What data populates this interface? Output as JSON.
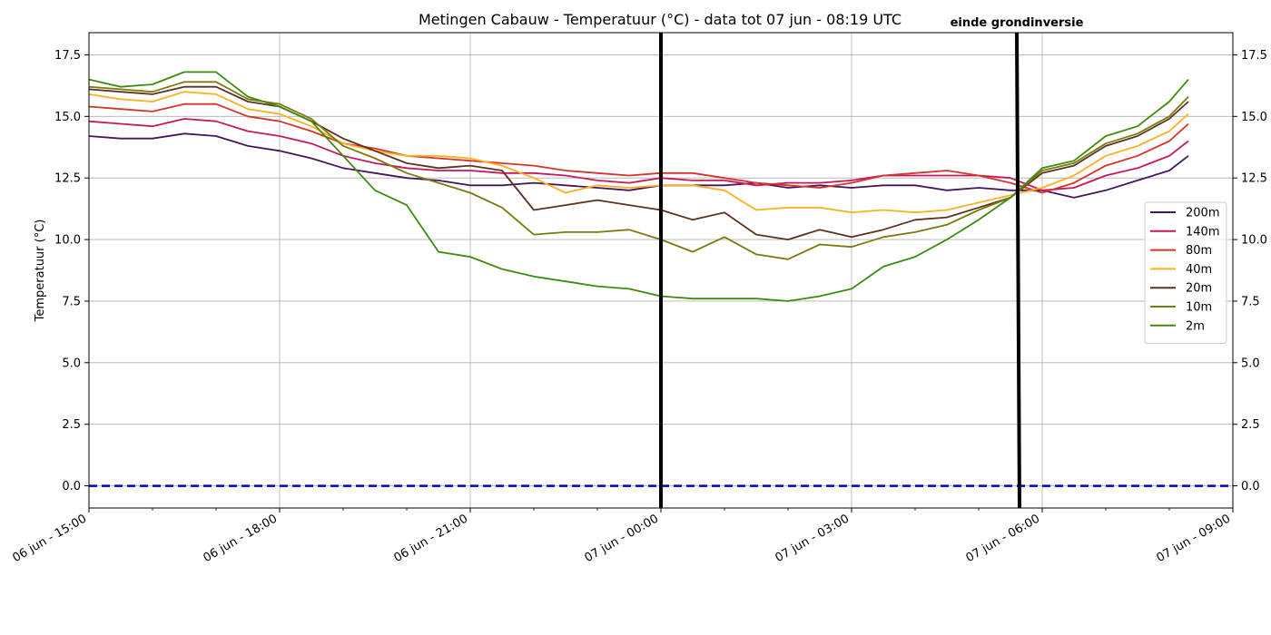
{
  "chart_data": {
    "type": "line",
    "title": "Metingen Cabauw - Temperatuur (°C) - data tot 07 jun - 08:19 UTC",
    "xlabel": "",
    "ylabel": "Temperatuur (°C)",
    "ylim": [
      -0.9,
      18.4
    ],
    "xlim": [
      0,
      18
    ],
    "x_ticks": [
      {
        "x": 0,
        "label": "06 jun - 15:00"
      },
      {
        "x": 3,
        "label": "06 jun - 18:00"
      },
      {
        "x": 6,
        "label": "06 jun - 21:00"
      },
      {
        "x": 9,
        "label": "07 jun - 00:00"
      },
      {
        "x": 12,
        "label": "07 jun - 03:00"
      },
      {
        "x": 15,
        "label": "07 jun - 06:00"
      },
      {
        "x": 18,
        "label": "07 jun - 09:00"
      }
    ],
    "y_ticks": [
      0.0,
      2.5,
      5.0,
      7.5,
      10.0,
      12.5,
      15.0,
      17.5
    ],
    "y_tick_labels": [
      "0.0",
      "2.5",
      "5.0",
      "7.5",
      "10.0",
      "12.5",
      "15.0",
      "17.5"
    ],
    "grid": true,
    "legend_position": "center-right",
    "reference_line": {
      "y": 0,
      "color": "#0000cc",
      "style": "dashed"
    },
    "vertical_markers": [
      {
        "x": 9.0,
        "label": ""
      },
      {
        "x": 14.6,
        "label": "einde grondinversie"
      }
    ],
    "x": [
      0,
      0.5,
      1,
      1.5,
      2,
      2.5,
      3,
      3.5,
      4,
      4.5,
      5,
      5.5,
      6,
      6.5,
      7,
      7.5,
      8,
      8.5,
      9,
      9.5,
      10,
      10.5,
      11,
      11.5,
      12,
      12.5,
      13,
      13.5,
      14,
      14.5,
      15,
      15.5,
      16,
      16.5,
      17,
      17.3
    ],
    "series": [
      {
        "name": "200m",
        "color": "#44185e",
        "values": [
          14.2,
          14.1,
          14.1,
          14.3,
          14.2,
          13.8,
          13.6,
          13.3,
          12.9,
          12.7,
          12.5,
          12.4,
          12.2,
          12.2,
          12.3,
          12.2,
          12.1,
          12.0,
          12.2,
          12.2,
          12.2,
          12.3,
          12.1,
          12.2,
          12.1,
          12.2,
          12.2,
          12.0,
          12.1,
          12.0,
          12.0,
          11.7,
          12.0,
          12.4,
          12.8,
          13.4
        ]
      },
      {
        "name": "140m",
        "color": "#c8175b",
        "values": [
          14.8,
          14.7,
          14.6,
          14.9,
          14.8,
          14.4,
          14.2,
          13.9,
          13.4,
          13.1,
          12.9,
          12.8,
          12.8,
          12.7,
          12.7,
          12.6,
          12.4,
          12.3,
          12.5,
          12.4,
          12.4,
          12.2,
          12.3,
          12.3,
          12.4,
          12.6,
          12.6,
          12.6,
          12.6,
          12.5,
          12.0,
          12.1,
          12.6,
          12.9,
          13.4,
          14.0
        ]
      },
      {
        "name": "80m",
        "color": "#d6332a",
        "values": [
          15.4,
          15.3,
          15.2,
          15.5,
          15.5,
          15.0,
          14.8,
          14.4,
          13.9,
          13.7,
          13.4,
          13.3,
          13.2,
          13.1,
          13.0,
          12.8,
          12.7,
          12.6,
          12.7,
          12.7,
          12.5,
          12.3,
          12.2,
          12.1,
          12.3,
          12.6,
          12.7,
          12.8,
          12.6,
          12.3,
          11.9,
          12.3,
          13.0,
          13.4,
          14.0,
          14.7
        ]
      },
      {
        "name": "40m",
        "color": "#fbb121",
        "values": [
          15.9,
          15.7,
          15.6,
          16.0,
          15.9,
          15.3,
          15.1,
          14.6,
          13.9,
          13.6,
          13.4,
          13.4,
          13.3,
          13.0,
          12.5,
          11.9,
          12.2,
          12.1,
          12.2,
          12.2,
          12.0,
          11.2,
          11.3,
          11.3,
          11.1,
          11.2,
          11.1,
          11.2,
          11.5,
          11.8,
          12.1,
          12.6,
          13.4,
          13.8,
          14.4,
          15.1
        ]
      },
      {
        "name": "20m",
        "color": "#5c3221",
        "values": [
          16.1,
          16.0,
          15.9,
          16.2,
          16.2,
          15.6,
          15.4,
          14.8,
          14.1,
          13.6,
          13.1,
          12.9,
          13.0,
          12.8,
          11.2,
          11.4,
          11.6,
          11.4,
          11.2,
          10.8,
          11.1,
          10.2,
          10.0,
          10.4,
          10.1,
          10.4,
          10.8,
          10.9,
          11.3,
          11.7,
          12.7,
          13.0,
          13.8,
          14.2,
          14.9,
          15.6
        ]
      },
      {
        "name": "10m",
        "color": "#7b7a0f",
        "values": [
          16.2,
          16.1,
          16.0,
          16.4,
          16.4,
          15.7,
          15.5,
          14.9,
          13.8,
          13.3,
          12.7,
          12.3,
          11.9,
          11.3,
          10.2,
          10.3,
          10.3,
          10.4,
          10.0,
          9.5,
          10.1,
          9.4,
          9.2,
          9.8,
          9.7,
          10.1,
          10.3,
          10.6,
          11.2,
          11.7,
          12.8,
          13.1,
          13.9,
          14.3,
          15.0,
          15.8
        ]
      },
      {
        "name": "2m",
        "color": "#3f8b0f",
        "values": [
          16.5,
          16.2,
          16.3,
          16.8,
          16.8,
          15.8,
          15.4,
          14.8,
          13.4,
          12.0,
          11.4,
          9.5,
          9.3,
          8.8,
          8.5,
          8.3,
          8.1,
          8.0,
          7.7,
          7.6,
          7.6,
          7.6,
          7.5,
          7.7,
          8.0,
          8.9,
          9.3,
          10.0,
          10.8,
          11.7,
          12.9,
          13.2,
          14.2,
          14.6,
          15.6,
          16.5
        ]
      }
    ]
  }
}
